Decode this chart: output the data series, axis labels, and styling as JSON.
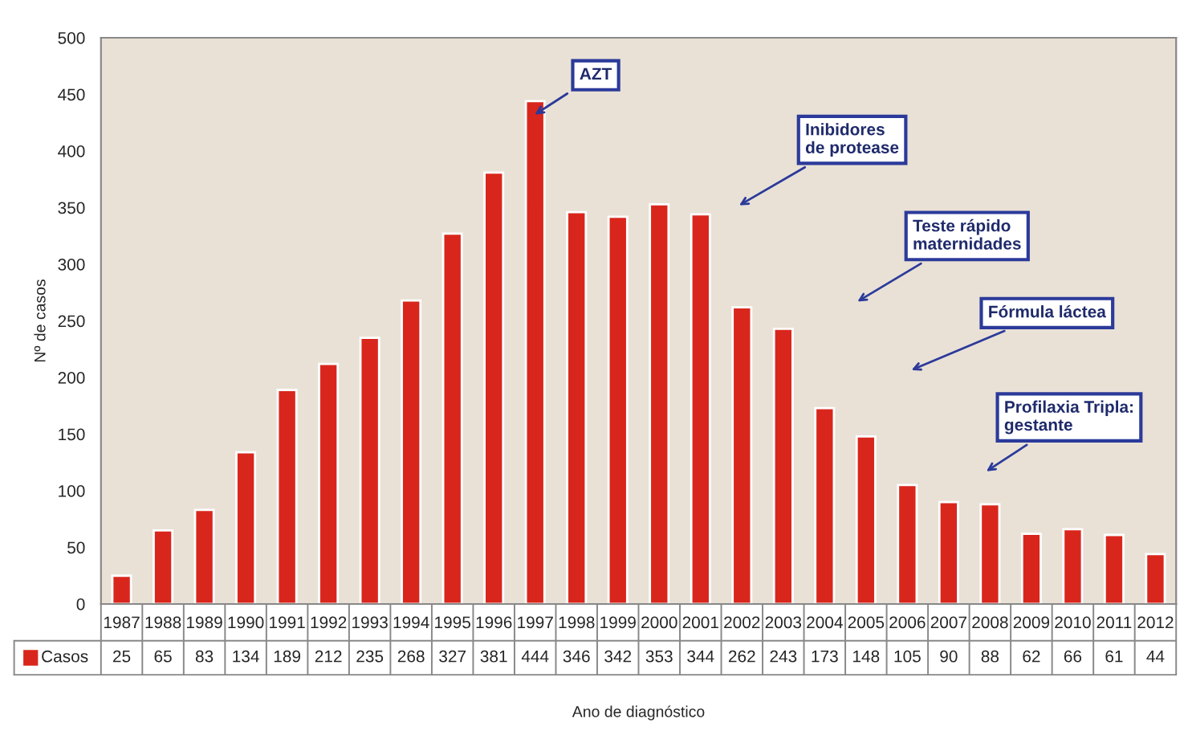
{
  "chart_data": {
    "type": "bar",
    "xlabel": "Ano de diagnóstico",
    "ylabel": "Nº de casos",
    "categories": [
      "1987",
      "1988",
      "1989",
      "1990",
      "1991",
      "1992",
      "1993",
      "1994",
      "1995",
      "1996",
      "1997",
      "1998",
      "1999",
      "2000",
      "2001",
      "2002",
      "2003",
      "2004",
      "2005",
      "2006",
      "2007",
      "2008",
      "2009",
      "2010",
      "2011",
      "2012"
    ],
    "series": [
      {
        "name": "Casos",
        "color": "#d9261c",
        "values": [
          25,
          65,
          83,
          134,
          189,
          212,
          235,
          268,
          327,
          381,
          444,
          346,
          342,
          353,
          344,
          262,
          243,
          173,
          148,
          105,
          90,
          88,
          62,
          66,
          61,
          44
        ]
      }
    ],
    "ylim": [
      0,
      500
    ],
    "yticks": [
      0,
      50,
      100,
      150,
      200,
      250,
      300,
      350,
      400,
      450,
      500
    ],
    "grid": false,
    "data_labels": true,
    "annotations": [
      "AZT",
      "Inibidores\nde protease",
      "Teste rápido\nmaternidades",
      "Fórmula láctea",
      "Profilaxia Tripla:\ngestante"
    ]
  }
}
